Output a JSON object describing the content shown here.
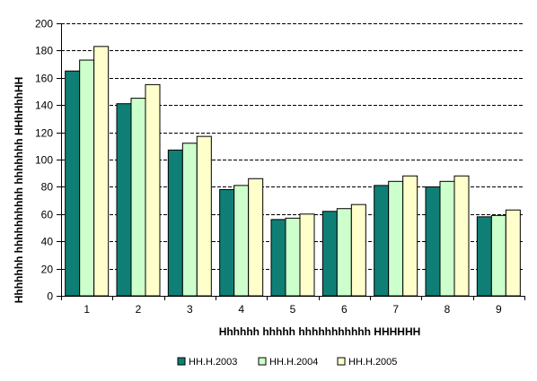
{
  "chart_data": {
    "type": "bar",
    "title": "",
    "xlabel": "Hhhhhh hhhhh hhhhhhhhhhh HHHHHH",
    "ylabel": "Hhhhhhh hhhhhhhhhh hhhhhhh HHhHhhHH",
    "categories": [
      "1",
      "2",
      "3",
      "4",
      "5",
      "6",
      "7",
      "8",
      "9"
    ],
    "ylim": [
      0,
      200
    ],
    "yticks": [
      0,
      20,
      40,
      60,
      80,
      100,
      120,
      140,
      160,
      180,
      200
    ],
    "grid": true,
    "legend_position": "bottom",
    "series": [
      {
        "name": "HH.H.2003",
        "color": "#0f7f76",
        "values": [
          165,
          141,
          107,
          78,
          56,
          62,
          81,
          80,
          58
        ]
      },
      {
        "name": "HH.H.2004",
        "color": "#ccffcc",
        "values": [
          173,
          145,
          112,
          81,
          57,
          64,
          84,
          84,
          59
        ]
      },
      {
        "name": "HH.H.2005",
        "color": "#ffffcc",
        "values": [
          183,
          155,
          117,
          86,
          60,
          67,
          88,
          88,
          63
        ]
      }
    ]
  }
}
